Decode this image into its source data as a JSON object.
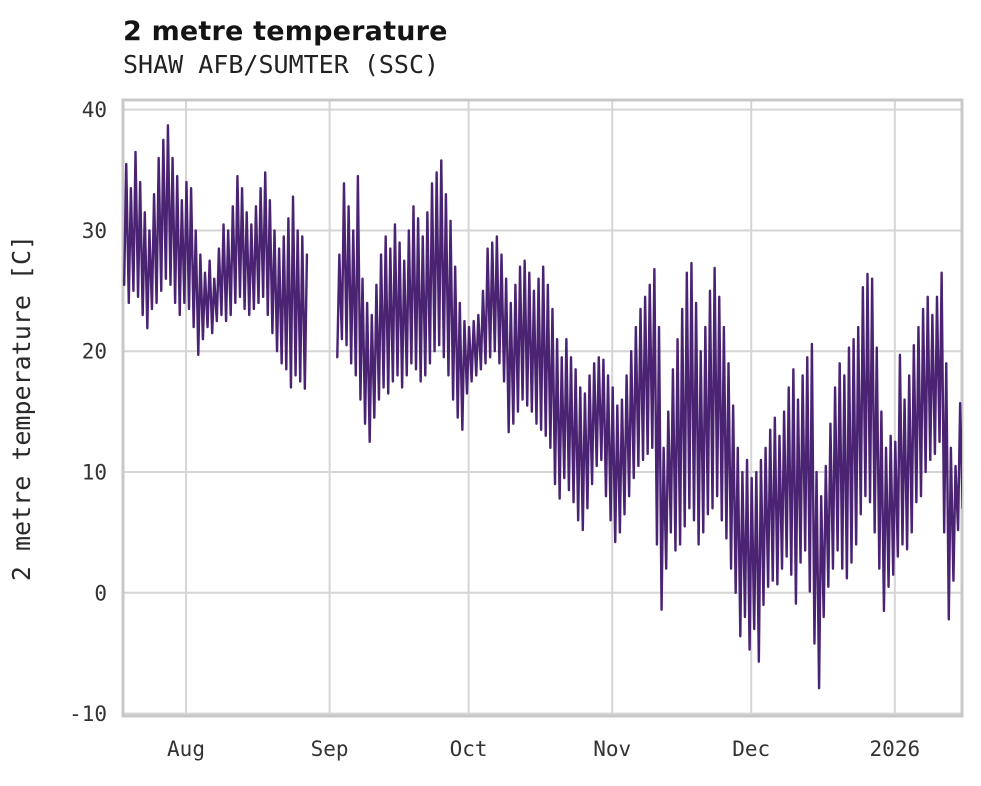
{
  "chart_data": {
    "type": "line",
    "title": "2 metre temperature",
    "subtitle": "SHAW AFB/SUMTER (SSC)",
    "ylabel": "2 metre temperature [C]",
    "line_color": "#4b2373",
    "grid_color": "#d5d5d5",
    "frame_color": "#c8c8c8",
    "tick_color": "#333333",
    "grid": true,
    "legend": "none",
    "ylim": [
      -10.2,
      40.8
    ],
    "y_ticks": [
      40,
      30,
      20,
      10,
      0,
      -10
    ],
    "x_range_days": [
      0,
      181.1
    ],
    "x_ticks": [
      {
        "label": "Aug",
        "day": 13.6
      },
      {
        "label": "Sep",
        "day": 44.6
      },
      {
        "label": "Oct",
        "day": 74.6
      },
      {
        "label": "Nov",
        "day": 105.6
      },
      {
        "label": "Dec",
        "day": 135.6
      },
      {
        "label": "2026",
        "day": 166.6
      }
    ],
    "series_format": "per-day [min_C, max_C]; null = data gap",
    "daily": [
      [
        25.5,
        35.5
      ],
      [
        24.0,
        33.5
      ],
      [
        25.0,
        36.5
      ],
      [
        24.5,
        34.0
      ],
      [
        23.0,
        31.5
      ],
      [
        21.9,
        30.0
      ],
      [
        23.5,
        33.0
      ],
      [
        24.0,
        36.0
      ],
      [
        25.0,
        37.5
      ],
      [
        26.0,
        38.7
      ],
      [
        25.5,
        36.0
      ],
      [
        24.0,
        34.5
      ],
      [
        23.0,
        32.5
      ],
      [
        24.0,
        34.0
      ],
      [
        23.5,
        33.5
      ],
      [
        22.0,
        30.0
      ],
      [
        19.7,
        28.0
      ],
      [
        21.0,
        26.5
      ],
      [
        22.0,
        27.5
      ],
      [
        21.5,
        26.0
      ],
      [
        22.5,
        28.5
      ],
      [
        23.0,
        30.5
      ],
      [
        22.5,
        30.0
      ],
      [
        23.0,
        32.0
      ],
      [
        24.0,
        34.5
      ],
      [
        24.5,
        33.5
      ],
      [
        23.5,
        31.5
      ],
      [
        23.0,
        30.5
      ],
      [
        23.5,
        32.0
      ],
      [
        24.0,
        33.5
      ],
      [
        24.5,
        34.8
      ],
      [
        23.0,
        32.5
      ],
      [
        21.5,
        30.0
      ],
      [
        20.0,
        28.5
      ],
      [
        19.0,
        29.5
      ],
      [
        18.5,
        31.0
      ],
      [
        17.0,
        32.8
      ],
      [
        18.0,
        30.0
      ],
      [
        17.5,
        29.5
      ],
      [
        16.9,
        28.0
      ],
      null,
      null,
      null,
      null,
      null,
      null,
      [
        19.5,
        28.0
      ],
      [
        21.0,
        33.9
      ],
      [
        20.5,
        32.0
      ],
      [
        19.0,
        30.0
      ],
      [
        18.0,
        34.5
      ],
      [
        16.0,
        26.0
      ],
      [
        14.0,
        24.0
      ],
      [
        12.5,
        23.0
      ],
      [
        14.5,
        25.5
      ],
      [
        16.0,
        28.0
      ],
      [
        17.0,
        29.5
      ],
      [
        16.5,
        28.5
      ],
      [
        17.5,
        30.5
      ],
      [
        18.0,
        29.0
      ],
      [
        17.0,
        27.5
      ],
      [
        18.0,
        30.0
      ],
      [
        19.0,
        32.0
      ],
      [
        18.5,
        31.0
      ],
      [
        17.5,
        29.5
      ],
      [
        18.0,
        31.5
      ],
      [
        19.0,
        33.9
      ],
      [
        20.0,
        34.8
      ],
      [
        20.5,
        35.8
      ],
      [
        19.5,
        33.0
      ],
      [
        18.0,
        30.8
      ],
      [
        16.0,
        27.0
      ],
      [
        14.5,
        24.0
      ],
      [
        13.5,
        22.5
      ],
      [
        16.5,
        22.0
      ],
      [
        17.5,
        22.5
      ],
      [
        18.0,
        23.0
      ],
      [
        18.5,
        25.0
      ],
      [
        19.0,
        28.5
      ],
      [
        19.5,
        29.0
      ],
      [
        20.0,
        29.5
      ],
      [
        19.0,
        28.0
      ],
      [
        17.5,
        26.0
      ],
      [
        13.3,
        24.0
      ],
      [
        14.0,
        25.5
      ],
      [
        15.0,
        27.0
      ],
      [
        16.0,
        27.5
      ],
      [
        15.5,
        26.5
      ],
      [
        15.0,
        25.0
      ],
      [
        14.0,
        26.0
      ],
      [
        13.5,
        27.0
      ],
      [
        13.0,
        25.5
      ],
      [
        12.0,
        23.5
      ],
      [
        9.0,
        21.0
      ],
      [
        7.8,
        19.5
      ],
      [
        9.5,
        21.0
      ],
      [
        8.5,
        19.5
      ],
      [
        7.5,
        18.5
      ],
      [
        6.0,
        17.0
      ],
      [
        5.2,
        16.5
      ],
      [
        7.0,
        18.0
      ],
      [
        9.0,
        19.0
      ],
      [
        10.5,
        19.5
      ],
      [
        11.0,
        19.3
      ],
      [
        8.0,
        18.0
      ],
      [
        6.0,
        17.0
      ],
      [
        4.2,
        15.5
      ],
      [
        5.0,
        16.0
      ],
      [
        6.5,
        18.0
      ],
      [
        8.0,
        20.0
      ],
      [
        9.5,
        22.0
      ],
      [
        10.5,
        23.5
      ],
      [
        11.0,
        24.5
      ],
      [
        11.5,
        25.5
      ],
      [
        12.0,
        26.8
      ],
      [
        4.0,
        22.0
      ],
      [
        -1.4,
        12.0
      ],
      [
        2.0,
        15.0
      ],
      [
        5.0,
        18.5
      ],
      [
        3.5,
        21.0
      ],
      [
        4.0,
        23.5
      ],
      [
        5.5,
        26.5
      ],
      [
        7.0,
        27.3
      ],
      [
        6.0,
        24.0
      ],
      [
        4.0,
        20.0
      ],
      [
        5.0,
        22.0
      ],
      [
        6.5,
        25.0
      ],
      [
        7.0,
        26.9
      ],
      [
        8.0,
        24.5
      ],
      [
        6.0,
        22.0
      ],
      [
        4.5,
        19.0
      ],
      [
        2.0,
        15.5
      ],
      [
        0.0,
        12.0
      ],
      [
        -3.6,
        10.0
      ],
      [
        -2.0,
        11.0
      ],
      [
        -4.7,
        9.5
      ],
      [
        -3.0,
        10.0
      ],
      [
        -5.7,
        11.0
      ],
      [
        -1.0,
        12.0
      ],
      [
        0.5,
        13.5
      ],
      [
        1.0,
        14.5
      ],
      [
        0.7,
        13.0
      ],
      [
        2.0,
        15.0
      ],
      [
        3.0,
        17.0
      ],
      [
        1.5,
        18.5
      ],
      [
        -0.9,
        16.0
      ],
      [
        2.5,
        18.0
      ],
      [
        3.5,
        19.5
      ],
      [
        0.1,
        20.6
      ],
      [
        -4.2,
        10.0
      ],
      [
        -7.9,
        8.0
      ],
      [
        -2.0,
        10.5
      ],
      [
        0.5,
        14.0
      ],
      [
        2.0,
        17.0
      ],
      [
        3.5,
        19.0
      ],
      [
        2.0,
        18.0
      ],
      [
        1.2,
        20.3
      ],
      [
        2.5,
        21.0
      ],
      [
        4.0,
        22.0
      ],
      [
        6.5,
        25.3
      ],
      [
        8.0,
        26.4
      ],
      [
        7.5,
        26.0
      ],
      [
        5.0,
        20.3
      ],
      [
        2.0,
        15.0
      ],
      [
        -1.5,
        12.0
      ],
      [
        0.5,
        13.0
      ],
      [
        1.5,
        12.5
      ],
      [
        3.0,
        19.7
      ],
      [
        4.0,
        16.0
      ],
      [
        3.6,
        18.0
      ],
      [
        5.0,
        20.5
      ],
      [
        7.5,
        22.0
      ],
      [
        8.0,
        23.5
      ],
      [
        10.0,
        24.5
      ],
      [
        11.0,
        23.0
      ],
      [
        11.5,
        24.5
      ],
      [
        12.5,
        26.5
      ],
      [
        5.0,
        19.0
      ],
      [
        -2.2,
        12.0
      ],
      [
        1.0,
        10.5
      ],
      [
        5.2,
        15.7
      ],
      [
        7.0,
        12.1
      ]
    ]
  }
}
